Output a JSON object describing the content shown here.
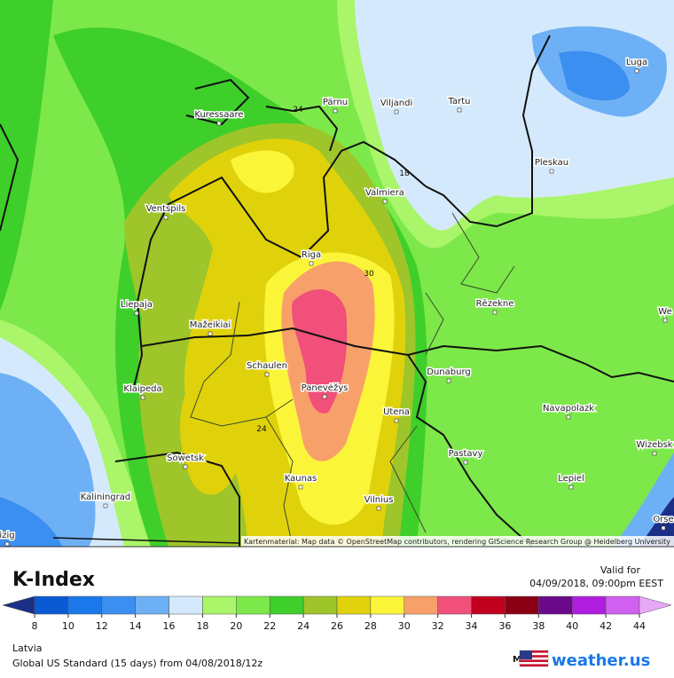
{
  "map": {
    "cities": [
      "Pärnu",
      "Viljandi",
      "Tartu",
      "Luga",
      "Kuressaare",
      "Pleskau",
      "Valmiera",
      "Ventspils",
      "Riga",
      "Liepaja",
      "Rēzekne",
      "Mažeikiai",
      "Schaulen",
      "Dunaburg",
      "Klaipeda",
      "Panevėžys",
      "Navapolazk",
      "Utena",
      "Wizebsk",
      "Sowetsk",
      "Pastavy",
      "Kaunas",
      "Lepiel",
      "Kaliningrad",
      "Vilnius",
      "Orse",
      "We",
      "izig"
    ],
    "contour_labels": [
      "24",
      "18",
      "30",
      "24"
    ],
    "attribution": "Kartenmaterial: Map data © OpenStreetMap contributors, rendering GIScience Research Group @ Heidelberg University"
  },
  "legend": {
    "title": "K-Index",
    "ticks": [
      8,
      10,
      12,
      14,
      16,
      18,
      20,
      22,
      24,
      26,
      28,
      30,
      32,
      34,
      36,
      38,
      40,
      42,
      44
    ],
    "colors": [
      "#1c2f86",
      "#0a5ad4",
      "#1a78ea",
      "#3a8ff0",
      "#6eb0f5",
      "#d4eafc",
      "#aaf56a",
      "#7de84a",
      "#3ecf2a",
      "#9ec52a",
      "#e0d20a",
      "#fbf53a",
      "#f8a06a",
      "#f0507a",
      "#c0001e",
      "#8a0014",
      "#6a0a8a",
      "#b01ee0",
      "#d060f0",
      "#e8a8f8"
    ]
  },
  "footer": {
    "region": "Latvia",
    "model_line": "Global US Standard (15 days) from 04/08/2018/12z",
    "valid_label": "Valid for",
    "valid_time": "04/09/2018, 09:00pm EEST",
    "model_label": "Model:",
    "brand": "weather.us"
  }
}
